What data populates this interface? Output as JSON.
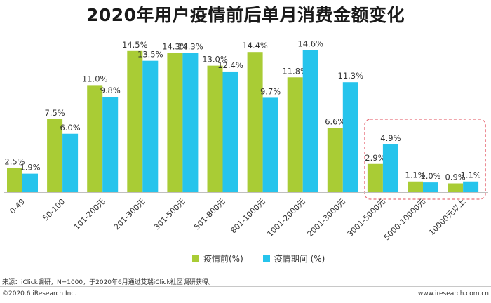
{
  "chart_data": {
    "type": "bar",
    "title": "2020年用户疫情前后单月消费金额变化",
    "categories": [
      "0-49",
      "50-100",
      "101-200元",
      "201-300元",
      "301-500元",
      "501-800元",
      "801-1000元",
      "1001-2000元",
      "2001-3000元",
      "3001-5000元",
      "5000-10000元",
      "10000元以上"
    ],
    "series": [
      {
        "name": "疫情前(%)",
        "color": "#a9cc35",
        "values": [
          2.5,
          7.5,
          11.0,
          14.5,
          14.3,
          13.0,
          14.4,
          11.8,
          6.6,
          2.9,
          1.1,
          0.9
        ]
      },
      {
        "name": "疫情期间 (%)",
        "color": "#26c4ec",
        "values": [
          1.9,
          6.0,
          9.8,
          13.5,
          14.3,
          12.4,
          9.7,
          14.6,
          11.3,
          4.9,
          1.0,
          1.1
        ]
      }
    ],
    "value_labels": [
      [
        "2.5%",
        "7.5%",
        "11.0%",
        "14.5%",
        "14.3%",
        "13.0%",
        "14.4%",
        "11.8%",
        "6.6%",
        "2.9%",
        "1.1%",
        "0.9%"
      ],
      [
        "1.9%",
        "6.0%",
        "9.8%",
        "13.5%",
        "14.3%",
        "12.4%",
        "9.7%",
        "14.6%",
        "11.3%",
        "4.9%",
        "1.0%",
        "1.1%"
      ]
    ],
    "ylim": [
      0,
      16
    ],
    "legend_position": "bottom-center",
    "highlight_categories": [
      "3001-5000元",
      "5000-10000元",
      "10000元以上"
    ],
    "highlight_color": "#e8707a"
  },
  "footer": {
    "source": "来源：iClick调研，N=1000，于2020年6月通过艾瑞iClick社区调研获得。",
    "copyright": "©2020.6 iResearch Inc.",
    "site": "www.iresearch.com.cn"
  }
}
